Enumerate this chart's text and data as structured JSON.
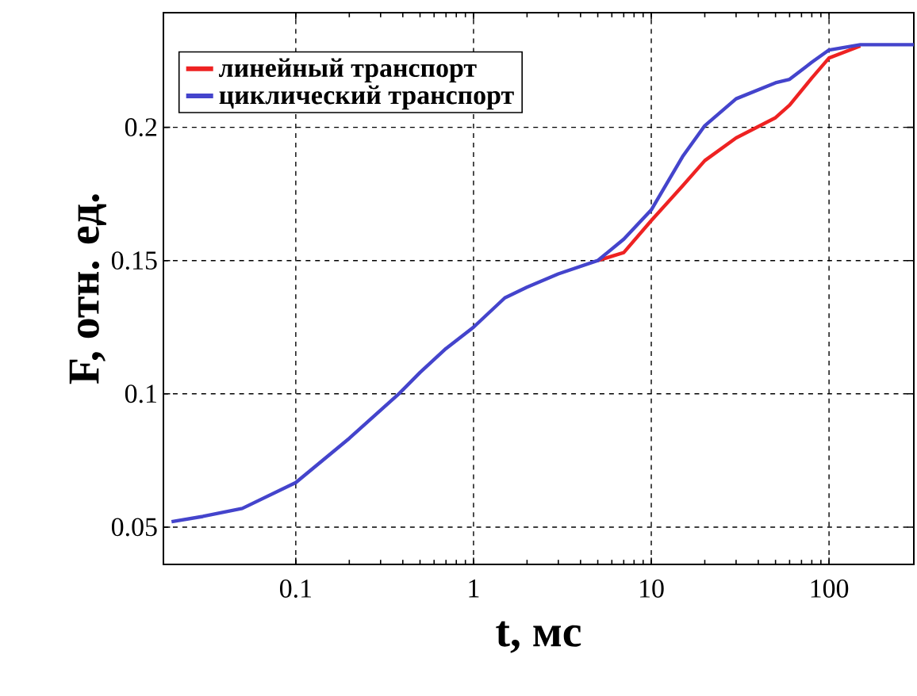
{
  "chart_data": {
    "type": "line",
    "xlabel": "t, мс",
    "ylabel": "F, отн. ед.",
    "log": "x",
    "grid": true,
    "legend": "top left",
    "line_style": "solid",
    "marker": "none",
    "xlim": [
      0.018,
      300
    ],
    "ylim": [
      0.036,
      0.243
    ],
    "xticks": [
      0.1,
      1,
      10,
      100
    ],
    "yticks": [
      0.05,
      0.1,
      0.15,
      0.2
    ],
    "series": [
      {
        "name": "линейный транспорт",
        "color": "#ee2222",
        "x": [
          5,
          7,
          10,
          15,
          20,
          30,
          50,
          60,
          80,
          100,
          150
        ],
        "values": [
          0.15,
          0.153,
          0.165,
          0.178,
          0.1875,
          0.196,
          0.2036,
          0.2083,
          0.2185,
          0.226,
          0.2305
        ]
      },
      {
        "name": "циклический транспорт",
        "color": "#4444cc",
        "x": [
          0.02,
          0.03,
          0.05,
          0.1,
          0.2,
          0.38,
          0.5,
          0.7,
          1,
          1.5,
          2,
          3,
          5,
          7,
          10,
          15,
          20,
          30,
          50,
          60,
          80,
          100,
          150,
          300
        ],
        "values": [
          0.052,
          0.054,
          0.057,
          0.0667,
          0.0833,
          0.1,
          0.108,
          0.117,
          0.125,
          0.136,
          0.14,
          0.145,
          0.15,
          0.158,
          0.169,
          0.189,
          0.2006,
          0.2107,
          0.2167,
          0.218,
          0.2244,
          0.229,
          0.231,
          0.231
        ]
      }
    ]
  }
}
